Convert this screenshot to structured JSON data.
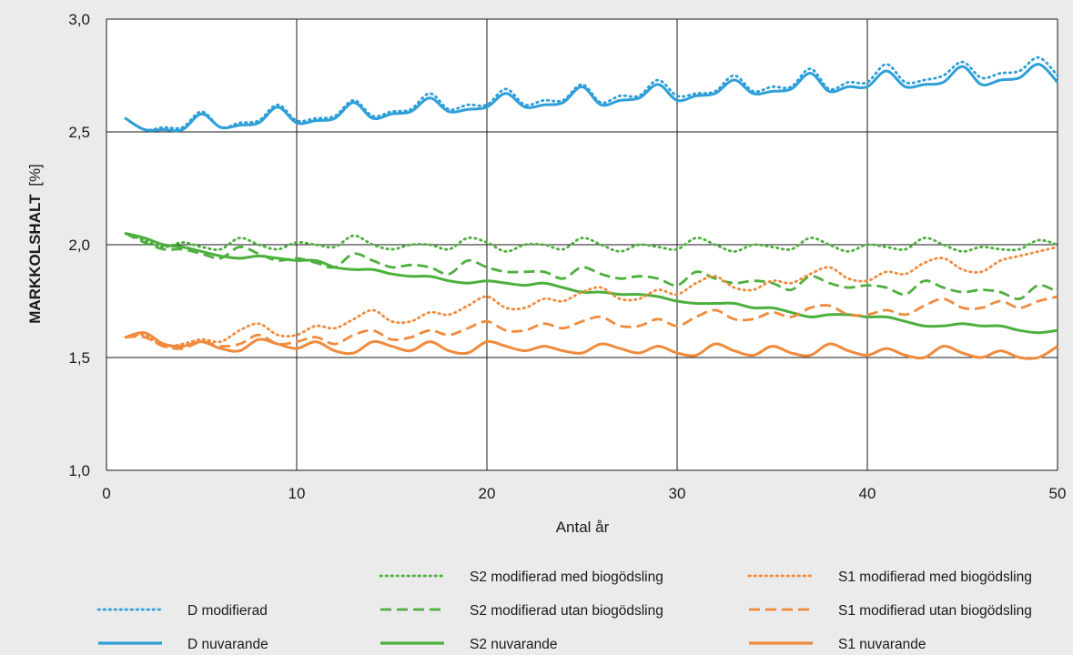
{
  "chart_data": {
    "type": "line",
    "xlabel": "Antal år",
    "ylabel_bold": "MARKKOLSHALT",
    "ylabel_unit": "[%]",
    "xlim": [
      0,
      50
    ],
    "ylim": [
      1.0,
      3.0
    ],
    "x_ticks": [
      0,
      10,
      20,
      30,
      40,
      50
    ],
    "x_tick_labels": [
      "0",
      "10",
      "20",
      "30",
      "40",
      "50"
    ],
    "y_ticks": [
      1.0,
      1.5,
      2.0,
      2.5,
      3.0
    ],
    "y_tick_labels": [
      "1,0",
      "1,5",
      "2,0",
      "2,5",
      "3,0"
    ],
    "grid": true,
    "legend_position": "bottom",
    "x": [
      1,
      2,
      3,
      4,
      5,
      6,
      7,
      8,
      9,
      10,
      11,
      12,
      13,
      14,
      15,
      16,
      17,
      18,
      19,
      20,
      21,
      22,
      23,
      24,
      25,
      26,
      27,
      28,
      29,
      30,
      31,
      32,
      33,
      34,
      35,
      36,
      37,
      38,
      39,
      40,
      41,
      42,
      43,
      44,
      45,
      46,
      47,
      48,
      49,
      50
    ],
    "series": [
      {
        "name": "D modifierad",
        "color": "#2f9fd8",
        "style": "dotted",
        "values": [
          2.56,
          2.51,
          2.52,
          2.52,
          2.59,
          2.52,
          2.54,
          2.55,
          2.62,
          2.55,
          2.56,
          2.57,
          2.64,
          2.57,
          2.59,
          2.6,
          2.67,
          2.6,
          2.62,
          2.62,
          2.69,
          2.62,
          2.64,
          2.64,
          2.71,
          2.63,
          2.66,
          2.66,
          2.73,
          2.66,
          2.67,
          2.68,
          2.75,
          2.68,
          2.7,
          2.7,
          2.78,
          2.69,
          2.72,
          2.72,
          2.8,
          2.72,
          2.73,
          2.75,
          2.81,
          2.74,
          2.76,
          2.77,
          2.83,
          2.75
        ]
      },
      {
        "name": "D nuvarande",
        "color": "#2f9fd8",
        "style": "solid",
        "values": [
          2.56,
          2.51,
          2.51,
          2.51,
          2.58,
          2.52,
          2.53,
          2.54,
          2.61,
          2.54,
          2.55,
          2.56,
          2.63,
          2.56,
          2.58,
          2.59,
          2.65,
          2.59,
          2.6,
          2.61,
          2.67,
          2.61,
          2.62,
          2.63,
          2.7,
          2.62,
          2.64,
          2.65,
          2.71,
          2.64,
          2.66,
          2.67,
          2.73,
          2.67,
          2.68,
          2.69,
          2.76,
          2.68,
          2.7,
          2.7,
          2.77,
          2.7,
          2.71,
          2.72,
          2.79,
          2.71,
          2.73,
          2.74,
          2.8,
          2.72
        ]
      },
      {
        "name": "S2 modifierad med biogödsling",
        "color": "#4daf3d",
        "style": "dotted",
        "values": [
          2.05,
          2.02,
          1.99,
          2.01,
          1.99,
          1.98,
          2.03,
          2.0,
          1.98,
          2.01,
          2.0,
          1.99,
          2.04,
          2.0,
          1.98,
          2.0,
          2.0,
          1.98,
          2.03,
          2.01,
          1.97,
          2.0,
          2.0,
          1.98,
          2.03,
          2.0,
          1.97,
          2.0,
          1.99,
          1.98,
          2.03,
          2.0,
          1.97,
          2.0,
          1.99,
          1.98,
          2.03,
          2.0,
          1.97,
          2.0,
          1.99,
          1.98,
          2.03,
          2.0,
          1.97,
          1.99,
          1.98,
          1.98,
          2.02,
          2.0
        ]
      },
      {
        "name": "S2 modifierad utan biogödsling",
        "color": "#4daf3d",
        "style": "dashed",
        "values": [
          2.05,
          2.01,
          1.98,
          1.98,
          1.96,
          1.94,
          1.99,
          1.96,
          1.93,
          1.94,
          1.92,
          1.9,
          1.96,
          1.93,
          1.9,
          1.91,
          1.9,
          1.87,
          1.93,
          1.9,
          1.88,
          1.88,
          1.88,
          1.85,
          1.9,
          1.87,
          1.85,
          1.86,
          1.85,
          1.82,
          1.88,
          1.85,
          1.83,
          1.84,
          1.83,
          1.8,
          1.86,
          1.83,
          1.81,
          1.82,
          1.81,
          1.78,
          1.84,
          1.81,
          1.79,
          1.8,
          1.79,
          1.76,
          1.82,
          1.79
        ]
      },
      {
        "name": "S2 nuvarande",
        "color": "#4daf3d",
        "style": "solid",
        "values": [
          2.05,
          2.03,
          2.0,
          1.99,
          1.97,
          1.95,
          1.94,
          1.95,
          1.94,
          1.93,
          1.93,
          1.9,
          1.89,
          1.89,
          1.87,
          1.86,
          1.86,
          1.84,
          1.83,
          1.84,
          1.83,
          1.82,
          1.83,
          1.81,
          1.79,
          1.79,
          1.78,
          1.78,
          1.77,
          1.75,
          1.74,
          1.74,
          1.74,
          1.72,
          1.72,
          1.7,
          1.68,
          1.69,
          1.69,
          1.68,
          1.68,
          1.66,
          1.64,
          1.64,
          1.65,
          1.64,
          1.64,
          1.62,
          1.61,
          1.62
        ]
      },
      {
        "name": "S1 modifierad med biogödsling",
        "color": "#f08a3c",
        "style": "dotted",
        "values": [
          1.59,
          1.6,
          1.55,
          1.56,
          1.58,
          1.57,
          1.62,
          1.65,
          1.6,
          1.6,
          1.64,
          1.63,
          1.67,
          1.71,
          1.66,
          1.66,
          1.7,
          1.69,
          1.73,
          1.77,
          1.72,
          1.72,
          1.76,
          1.75,
          1.79,
          1.81,
          1.76,
          1.76,
          1.8,
          1.78,
          1.83,
          1.86,
          1.81,
          1.8,
          1.84,
          1.83,
          1.87,
          1.9,
          1.85,
          1.84,
          1.88,
          1.87,
          1.92,
          1.94,
          1.89,
          1.88,
          1.93,
          1.95,
          1.97,
          1.99
        ]
      },
      {
        "name": "S1 modifierad utan biogödsling",
        "color": "#f08a3c",
        "style": "dashed",
        "values": [
          1.59,
          1.59,
          1.55,
          1.54,
          1.57,
          1.55,
          1.56,
          1.6,
          1.56,
          1.57,
          1.59,
          1.56,
          1.6,
          1.62,
          1.58,
          1.59,
          1.62,
          1.6,
          1.63,
          1.66,
          1.62,
          1.62,
          1.65,
          1.63,
          1.66,
          1.68,
          1.64,
          1.64,
          1.67,
          1.64,
          1.68,
          1.71,
          1.67,
          1.67,
          1.7,
          1.68,
          1.72,
          1.73,
          1.69,
          1.69,
          1.71,
          1.69,
          1.73,
          1.76,
          1.72,
          1.72,
          1.75,
          1.72,
          1.75,
          1.77
        ]
      },
      {
        "name": "S1 nuvarande",
        "color": "#f08a3c",
        "style": "solid",
        "values": [
          1.59,
          1.61,
          1.56,
          1.55,
          1.57,
          1.54,
          1.53,
          1.58,
          1.56,
          1.54,
          1.57,
          1.53,
          1.52,
          1.57,
          1.55,
          1.53,
          1.57,
          1.53,
          1.52,
          1.57,
          1.55,
          1.53,
          1.55,
          1.53,
          1.52,
          1.56,
          1.54,
          1.52,
          1.55,
          1.52,
          1.51,
          1.56,
          1.53,
          1.51,
          1.55,
          1.52,
          1.51,
          1.56,
          1.53,
          1.51,
          1.54,
          1.51,
          1.5,
          1.55,
          1.52,
          1.5,
          1.53,
          1.5,
          1.5,
          1.55
        ]
      }
    ],
    "legend_rows": [
      [
        "S2 modifierad med biogödsling",
        "S1 modifierad med biogödsling"
      ],
      [
        "D modifierad",
        "S2 modifierad utan biogödsling",
        "S1 modifierad utan biogödsling"
      ],
      [
        "D nuvarande",
        "S2 nuvarande",
        "S1 nuvarande"
      ]
    ]
  }
}
